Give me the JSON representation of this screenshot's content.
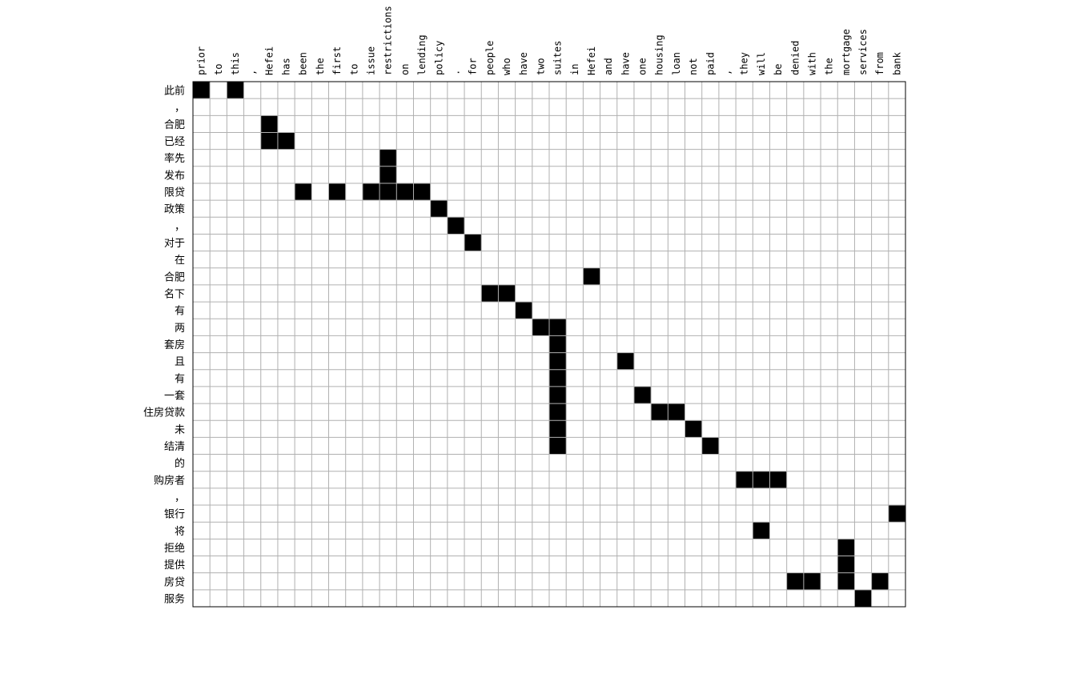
{
  "chart_data": {
    "type": "heatmap",
    "title": "",
    "xlabel": "",
    "ylabel": "",
    "colors": {
      "on": "#000000",
      "off": "#ffffff",
      "grid": "#b0b0b0"
    },
    "x": [
      "prior",
      "to",
      "this",
      ",",
      "Hefei",
      "has",
      "been",
      "the",
      "first",
      "to",
      "issue",
      "restrictions",
      "on",
      "lending",
      "policy",
      ".",
      "for",
      "people",
      "who",
      "have",
      "two",
      "suites",
      "in",
      "Hefei",
      "and",
      "have",
      "one",
      "housing",
      "loan",
      "not",
      "paid",
      ",",
      "they",
      "will",
      "be",
      "denied",
      "with",
      "the",
      "mortgage",
      "services",
      "from",
      "bank"
    ],
    "y": [
      "此前",
      "，",
      "合肥",
      "已经",
      "率先",
      "发布",
      "限贷",
      "政策",
      "，",
      "对于",
      "在",
      "合肥",
      "名下",
      "有",
      "两",
      "套房",
      "且",
      "有",
      "一套",
      "住房贷款",
      "未",
      "结清",
      "的",
      "购房者",
      "，",
      "银行",
      "将",
      "拒绝",
      "提供",
      "房贷",
      "服务"
    ],
    "alignments": [
      [
        0,
        0
      ],
      [
        0,
        2
      ],
      [
        2,
        4
      ],
      [
        3,
        4
      ],
      [
        3,
        5
      ],
      [
        4,
        11
      ],
      [
        5,
        11
      ],
      [
        6,
        6
      ],
      [
        6,
        8
      ],
      [
        6,
        10
      ],
      [
        6,
        11
      ],
      [
        6,
        12
      ],
      [
        6,
        13
      ],
      [
        7,
        14
      ],
      [
        8,
        15
      ],
      [
        9,
        16
      ],
      [
        11,
        23
      ],
      [
        12,
        17
      ],
      [
        12,
        18
      ],
      [
        13,
        19
      ],
      [
        14,
        20
      ],
      [
        14,
        21
      ],
      [
        15,
        21
      ],
      [
        16,
        21
      ],
      [
        16,
        25
      ],
      [
        17,
        21
      ],
      [
        18,
        21
      ],
      [
        18,
        26
      ],
      [
        19,
        21
      ],
      [
        19,
        27
      ],
      [
        19,
        28
      ],
      [
        20,
        21
      ],
      [
        20,
        29
      ],
      [
        21,
        21
      ],
      [
        21,
        30
      ],
      [
        23,
        32
      ],
      [
        23,
        33
      ],
      [
        23,
        34
      ],
      [
        25,
        41
      ],
      [
        26,
        33
      ],
      [
        27,
        38
      ],
      [
        28,
        38
      ],
      [
        29,
        35
      ],
      [
        29,
        36
      ],
      [
        29,
        38
      ],
      [
        29,
        40
      ],
      [
        30,
        39
      ]
    ]
  }
}
